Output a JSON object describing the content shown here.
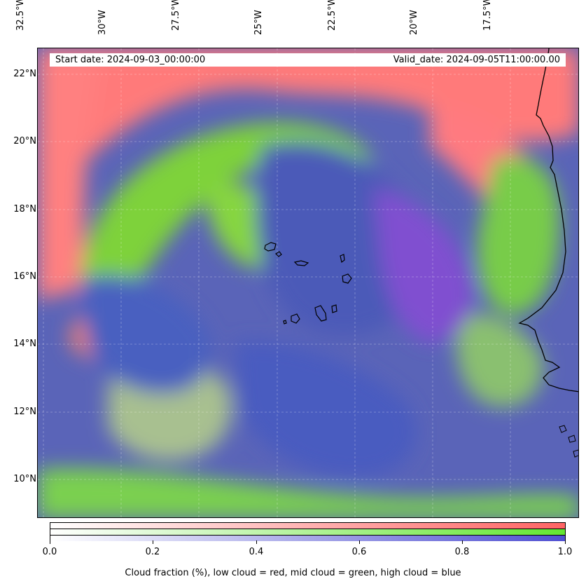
{
  "map": {
    "start_date": "Start date: 2024-09-03_00:00:00",
    "valid_date": "Valid_date: 2024-09-05T11:00:00.00",
    "lon_labels": [
      "32.5°W",
      "30°W",
      "27.5°W",
      "25°W",
      "22.5°W",
      "20°W",
      "17.5°W"
    ],
    "lat_labels": [
      "22°N",
      "20°N",
      "18°N",
      "16°N",
      "14°N",
      "12°N",
      "10°N"
    ],
    "gridlines": true,
    "layers": {
      "low_cloud_color": "#ff6464",
      "mid_cloud_color": "#64e632",
      "high_cloud_color": "#5050d2"
    }
  },
  "colorbar": {
    "ticks": [
      "0.0",
      "0.2",
      "0.4",
      "0.6",
      "0.8",
      "1.0"
    ],
    "caption": "Cloud fraction (%), low cloud = red, mid cloud = green, high cloud = blue",
    "colors": {
      "low": "#ff6464",
      "mid": "#64e632",
      "high": "#5050d2"
    }
  }
}
